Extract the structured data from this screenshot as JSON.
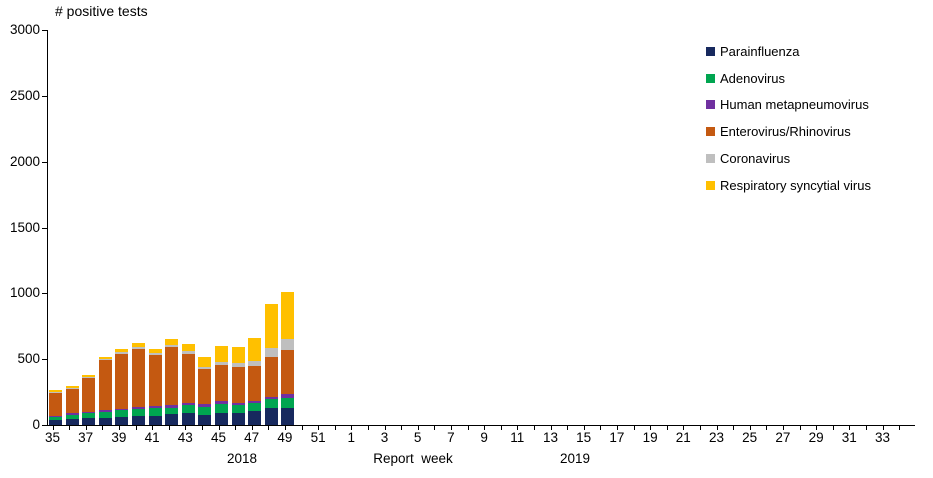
{
  "title": "# positive tests",
  "axis": {
    "x_caption": "Report  week",
    "year_left": "2018",
    "year_right": "2019",
    "y_ticks": [
      0,
      500,
      1000,
      1500,
      2000,
      2500,
      3000
    ]
  },
  "chart_data": {
    "type": "bar",
    "stacked": true,
    "title": "# positive tests",
    "xlabel": "Report week",
    "ylabel": "# positive tests",
    "ylim": [
      0,
      3000
    ],
    "grid": false,
    "legend_position": "right",
    "x_tick_weeks": [
      35,
      36,
      37,
      38,
      39,
      40,
      41,
      42,
      43,
      44,
      45,
      46,
      47,
      48,
      49,
      50,
      51,
      52,
      1,
      2,
      3,
      4,
      5,
      6,
      7,
      8,
      9,
      10,
      11,
      12,
      13,
      14,
      15,
      16,
      17,
      18,
      19,
      20,
      21,
      22,
      23,
      24,
      25,
      26,
      27,
      28,
      29,
      30,
      31,
      32,
      33,
      34
    ],
    "x_labeled_ticks": [
      35,
      37,
      39,
      41,
      43,
      45,
      47,
      49,
      51,
      1,
      3,
      5,
      7,
      9,
      11,
      13,
      15,
      17,
      19,
      21,
      23,
      25,
      27,
      29,
      31,
      33
    ],
    "categories": [
      35,
      36,
      37,
      38,
      39,
      40,
      41,
      42,
      43,
      44,
      45,
      46,
      47,
      48,
      49
    ],
    "series": [
      {
        "name": "Parainfluenza",
        "color": "#17295E",
        "values": [
          35,
          48,
          50,
          55,
          60,
          68,
          68,
          81,
          93,
          76,
          93,
          93,
          106,
          126,
          131
        ]
      },
      {
        "name": "Adenovirus",
        "color": "#00A550",
        "values": [
          25,
          30,
          38,
          45,
          52,
          55,
          58,
          50,
          58,
          63,
          68,
          56,
          58,
          68,
          76
        ]
      },
      {
        "name": "Human metapneumovirus",
        "color": "#7030A0",
        "values": [
          12,
          12,
          12,
          13,
          13,
          15,
          17,
          18,
          18,
          18,
          20,
          20,
          17,
          20,
          25
        ]
      },
      {
        "name": "Enterovirus/Rhinovirus",
        "color": "#C45911",
        "values": [
          175,
          185,
          255,
          380,
          415,
          437,
          390,
          442,
          371,
          265,
          273,
          273,
          265,
          303,
          336
        ]
      },
      {
        "name": "Coronavirus",
        "color": "#BFBFBF",
        "values": [
          5,
          5,
          6,
          8,
          13,
          18,
          15,
          20,
          20,
          18,
          23,
          30,
          38,
          68,
          86
        ]
      },
      {
        "name": "Respiratory syncytial virus",
        "color": "#FFC000",
        "values": [
          12,
          14,
          16,
          19,
          25,
          27,
          27,
          45,
          58,
          76,
          121,
          119,
          174,
          336,
          354
        ]
      }
    ],
    "totals": [
      264,
      294,
      377,
      520,
      578,
      620,
      575,
      656,
      618,
      516,
      598,
      591,
      658,
      921,
      1008
    ]
  }
}
